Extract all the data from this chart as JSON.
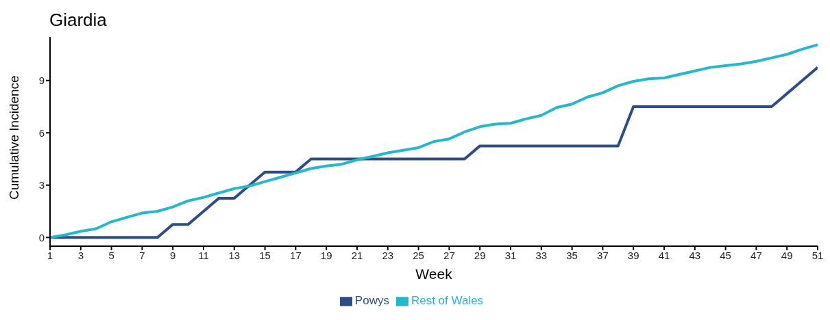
{
  "chart_data": {
    "type": "line",
    "title": "Giardia",
    "xlabel": "Week",
    "ylabel": "Cumulative Incidence",
    "x": [
      1,
      2,
      3,
      4,
      5,
      6,
      7,
      8,
      9,
      10,
      11,
      12,
      13,
      14,
      15,
      16,
      17,
      18,
      19,
      20,
      21,
      22,
      23,
      24,
      25,
      26,
      27,
      28,
      29,
      30,
      31,
      32,
      33,
      34,
      35,
      36,
      37,
      38,
      39,
      40,
      41,
      42,
      43,
      44,
      45,
      46,
      47,
      48,
      49,
      50,
      51
    ],
    "series": [
      {
        "name": "Powys",
        "color": "#2e4d85",
        "values": [
          0,
          0,
          0,
          0,
          0,
          0,
          0,
          0,
          0.75,
          0.75,
          1.5,
          2.25,
          2.25,
          3.0,
          3.75,
          3.75,
          3.75,
          4.5,
          4.5,
          4.5,
          4.5,
          4.5,
          4.5,
          4.5,
          4.5,
          4.5,
          4.5,
          4.5,
          5.25,
          5.25,
          5.25,
          5.25,
          5.25,
          5.25,
          5.25,
          5.25,
          5.25,
          5.25,
          7.5,
          7.5,
          7.5,
          7.5,
          7.5,
          7.5,
          7.5,
          7.5,
          7.5,
          7.5,
          8.25,
          9.0,
          9.75
        ]
      },
      {
        "name": "Rest of Wales",
        "color": "#22b8d0",
        "values": [
          0,
          0.15,
          0.35,
          0.5,
          0.9,
          1.15,
          1.4,
          1.5,
          1.75,
          2.1,
          2.3,
          2.55,
          2.8,
          2.95,
          3.2,
          3.45,
          3.7,
          3.95,
          4.1,
          4.2,
          4.45,
          4.65,
          4.85,
          5.0,
          5.15,
          5.5,
          5.65,
          6.05,
          6.35,
          6.5,
          6.55,
          6.8,
          7.0,
          7.45,
          7.65,
          8.05,
          8.3,
          8.7,
          8.95,
          9.1,
          9.15,
          9.35,
          9.55,
          9.75,
          9.85,
          9.95,
          10.1,
          10.3,
          10.5,
          10.8,
          11.05
        ]
      }
    ],
    "xlim": [
      1,
      51
    ],
    "xticks": [
      1,
      3,
      5,
      7,
      9,
      11,
      13,
      15,
      17,
      19,
      21,
      23,
      25,
      27,
      29,
      31,
      33,
      35,
      37,
      39,
      41,
      43,
      45,
      47,
      49,
      51
    ],
    "ylim": [
      -0.5,
      11.5
    ],
    "yticks": [
      0,
      3,
      6,
      9
    ],
    "grid": false,
    "legend": "bottom",
    "marker": "none",
    "line_style": "solid"
  }
}
